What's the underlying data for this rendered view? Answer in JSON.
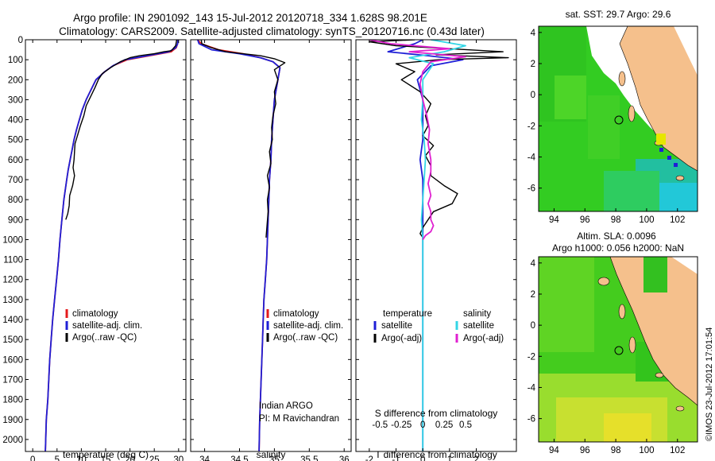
{
  "header": {
    "line1": "Argo profile: IN 2901092_143 15-Jul-2012 20120718_334 1.628S 98.201E",
    "line2": "Climatology: CARS2009. Satellite-adjusted climatology: synTS_20120716.nc (0.43d later)"
  },
  "side_stamp": "©IMOS 23-Jul-2012 17:01:54",
  "colors": {
    "climatology": "#e41a1c",
    "satellite": "#1f1fd6",
    "argo": "#000000",
    "argo_salinity": "#e020d0",
    "satellite_salinity": "#33d6e6",
    "land": "#f5c08c"
  },
  "chart_data": [
    {
      "type": "line",
      "id": "temperature",
      "xlabel": "temperature (deg C)",
      "ylabel": "",
      "xlim": [
        -1.5,
        31.5
      ],
      "ylim": [
        0,
        2060
      ],
      "y_inverted": true,
      "xticks": [
        0,
        5,
        10,
        15,
        20,
        25,
        30
      ],
      "yticks": [
        0,
        100,
        200,
        300,
        400,
        500,
        600,
        700,
        800,
        900,
        1000,
        1100,
        1200,
        1300,
        1400,
        1500,
        1600,
        1700,
        1800,
        1900,
        2000
      ],
      "legend": {
        "position": "lower-center",
        "entries": [
          "climatology",
          "satellite-adj. clim.",
          "Argo(..raw -QC)"
        ]
      },
      "series": [
        {
          "name": "climatology",
          "color": "#e41a1c",
          "x": [
            29.9,
            29.8,
            29.5,
            28.5,
            24,
            19.5,
            16.5,
            14.8,
            13,
            12,
            11,
            10.2,
            9.6,
            9,
            8.5,
            8.1,
            7.7,
            7.3,
            7,
            6.7,
            6.4,
            6,
            5.6,
            5.3,
            4.9,
            4.5,
            4.1,
            3.8,
            3.5,
            3.3,
            3.1,
            2.8,
            2.6
          ],
          "y": [
            0,
            20,
            40,
            60,
            80,
            100,
            130,
            160,
            200,
            250,
            300,
            350,
            400,
            450,
            500,
            550,
            600,
            650,
            700,
            750,
            800,
            900,
            1000,
            1100,
            1200,
            1300,
            1400,
            1500,
            1600,
            1700,
            1800,
            1900,
            2060
          ]
        },
        {
          "name": "satellite-adj. clim.",
          "color": "#1f1fd6",
          "x": [
            29.9,
            29.8,
            29.4,
            28,
            23.5,
            19,
            16.5,
            14.8,
            13,
            12,
            11,
            10.2,
            9.6,
            9,
            8.5,
            8.1,
            7.7,
            7.3,
            7,
            6.7,
            6.4,
            6,
            5.6,
            5.3,
            4.9,
            4.5,
            4.1,
            3.8,
            3.5,
            3.3,
            3.1,
            2.8,
            2.6
          ],
          "y": [
            0,
            20,
            40,
            60,
            80,
            100,
            130,
            160,
            200,
            250,
            300,
            350,
            400,
            450,
            500,
            550,
            600,
            650,
            700,
            750,
            800,
            900,
            1000,
            1100,
            1200,
            1300,
            1400,
            1500,
            1600,
            1700,
            1800,
            1900,
            2060
          ]
        },
        {
          "name": "Argo(..raw -QC)",
          "color": "#000000",
          "x": [
            29.6,
            29.4,
            28.5,
            27,
            25,
            22,
            20,
            18,
            16,
            14.3,
            13.5,
            12.8,
            12,
            11,
            10.5,
            9.8,
            9.2,
            8.7,
            8.6,
            8.5,
            8.3,
            8.6,
            8.2,
            7.6,
            7.5,
            7.2,
            6.8
          ],
          "y": [
            0,
            30,
            55,
            60,
            70,
            80,
            90,
            110,
            140,
            170,
            200,
            240,
            280,
            330,
            380,
            430,
            480,
            520,
            560,
            600,
            640,
            680,
            730,
            780,
            830,
            870,
            900
          ]
        }
      ]
    },
    {
      "type": "line",
      "id": "salinity",
      "xlabel": "salinity",
      "ylabel": "",
      "xlim": [
        33.8,
        36.1
      ],
      "ylim": [
        0,
        2060
      ],
      "y_inverted": true,
      "xticks": [
        34,
        34.5,
        35,
        35.5,
        36
      ],
      "xtick_labels": [
        "34",
        "34.5",
        "35",
        "35.5",
        "36"
      ],
      "legend": {
        "position": "lower-right",
        "entries": [
          "climatology",
          "satellite-adj. clim.",
          "Argo(..raw -QC)"
        ]
      },
      "annotations": [
        "Indian ARGO",
        "PI: M Ravichandran"
      ],
      "series": [
        {
          "name": "climatology",
          "color": "#e41a1c",
          "x": [
            33.9,
            33.95,
            34.2,
            34.55,
            34.8,
            34.98,
            35.08,
            35.05,
            35.0,
            34.98,
            34.96,
            34.95,
            34.93,
            34.92,
            34.91,
            34.9,
            34.89,
            34.87,
            34.85,
            34.84,
            34.83,
            34.82,
            34.81,
            34.8,
            34.79,
            34.78
          ],
          "y": [
            0,
            20,
            50,
            70,
            90,
            110,
            140,
            200,
            300,
            400,
            500,
            600,
            700,
            800,
            900,
            1000,
            1100,
            1200,
            1300,
            1400,
            1500,
            1600,
            1700,
            1800,
            1900,
            2060
          ]
        },
        {
          "name": "satellite-adj. clim.",
          "color": "#1f1fd6",
          "x": [
            33.9,
            33.92,
            34.1,
            34.5,
            34.8,
            34.98,
            35.08,
            35.05,
            35.0,
            34.98,
            34.96,
            34.95,
            34.93,
            34.92,
            34.91,
            34.9,
            34.89,
            34.87,
            34.85,
            34.84,
            34.83,
            34.82,
            34.81,
            34.8,
            34.79,
            34.78
          ],
          "y": [
            0,
            20,
            50,
            70,
            90,
            110,
            140,
            200,
            300,
            400,
            500,
            600,
            700,
            800,
            900,
            1000,
            1100,
            1200,
            1300,
            1400,
            1500,
            1600,
            1700,
            1800,
            1900,
            2060
          ]
        },
        {
          "name": "Argo(..raw -QC)",
          "color": "#000000",
          "x": [
            33.95,
            33.96,
            34.1,
            34.3,
            34.55,
            34.8,
            35.0,
            35.15,
            35.0,
            35.05,
            35.0,
            35.02,
            34.98,
            34.96,
            34.97,
            34.93,
            34.95,
            34.9,
            34.93,
            34.9,
            34.91,
            34.88
          ],
          "y": [
            0,
            20,
            40,
            60,
            70,
            80,
            95,
            115,
            150,
            200,
            260,
            320,
            380,
            440,
            500,
            560,
            620,
            680,
            740,
            800,
            860,
            990
          ]
        }
      ]
    },
    {
      "type": "line",
      "id": "difference",
      "xlabel": "T difference from climatology",
      "xlabel_top": "S difference from climatology",
      "ylabel": "",
      "xlim": [
        -2.5,
        3.5
      ],
      "ylim": [
        0,
        2060
      ],
      "y_inverted": true,
      "xticks": [
        -2,
        -1,
        0,
        1,
        2
      ],
      "s_ticks": [
        -0.5,
        -0.25,
        0,
        0.25,
        0.5
      ],
      "s_tick_labels": [
        "-0.5",
        "-0.25",
        "0",
        "0.25",
        "0.5"
      ],
      "legend": {
        "position": "lower-center",
        "group_titles": [
          "temperature",
          "salinity"
        ],
        "entries": [
          "satellite",
          "Argo(-adj)",
          "satellite",
          "Argo(-adj)"
        ]
      },
      "series": [
        {
          "name": "temperature satellite",
          "color": "#1f1fd6",
          "x": [
            0,
            -0.3,
            -1.3,
            0.2,
            1.5,
            0.3,
            -0.2,
            0,
            0,
            0,
            -0.1,
            0,
            0,
            0,
            0,
            0,
            0,
            0,
            0,
            0,
            0,
            0
          ],
          "y": [
            0,
            20,
            60,
            80,
            100,
            130,
            200,
            300,
            400,
            500,
            600,
            700,
            800,
            900,
            1000,
            1100,
            1200,
            1300,
            1400,
            1500,
            1800,
            2060
          ]
        },
        {
          "name": "temperature Argo(-adj)",
          "color": "#000000",
          "x": [
            -0.3,
            -2.0,
            -1.0,
            3.0,
            0.5,
            3.2,
            0.6,
            -1.0,
            -0.3,
            -0.8,
            -0.1,
            0.3,
            0.1,
            0.2,
            0,
            0.4,
            0.1,
            0.3,
            0.3,
            0.8,
            1.3,
            1.1,
            0.4,
            0.2,
            0,
            -0.1,
            0
          ],
          "y": [
            0,
            10,
            30,
            60,
            75,
            90,
            100,
            120,
            160,
            200,
            260,
            320,
            380,
            430,
            480,
            530,
            580,
            630,
            680,
            730,
            770,
            820,
            860,
            900,
            940,
            970,
            990
          ]
        },
        {
          "name": "salinity satellite",
          "color": "#33d6e6",
          "x": [
            0.3,
            1.6,
            0.8,
            -0.5,
            0.4,
            0,
            0,
            -0.05,
            0.05,
            0.1,
            0.05,
            0,
            -0.05,
            0,
            0,
            0,
            0,
            0,
            0,
            0,
            0
          ],
          "y": [
            0,
            30,
            60,
            90,
            120,
            200,
            300,
            400,
            500,
            600,
            700,
            800,
            900,
            1000,
            1100,
            1200,
            1300,
            1400,
            1500,
            1800,
            2060
          ]
        },
        {
          "name": "salinity Argo(-adj)",
          "color": "#e020d0",
          "x": [
            -2.0,
            -1.2,
            1.0,
            -0.5,
            1.6,
            0.3,
            0,
            -0.1,
            0,
            0.15,
            0.25,
            0.2,
            0.3,
            0.3,
            0.2,
            0.3,
            0.2,
            0.3,
            0.3,
            0.4,
            0.3,
            0.1,
            0
          ],
          "y": [
            0,
            20,
            45,
            60,
            85,
            110,
            160,
            220,
            300,
            380,
            450,
            520,
            600,
            660,
            720,
            780,
            820,
            860,
            900,
            930,
            960,
            980,
            1000
          ]
        }
      ]
    },
    {
      "type": "heatmap",
      "id": "sst-map",
      "title": "sat. SST: 29.7 Argo: 29.6",
      "xlim": [
        93,
        103.3
      ],
      "ylim": [
        -7.5,
        4.4
      ],
      "xticks": [
        94,
        96,
        98,
        100,
        102
      ],
      "yticks": [
        4,
        2,
        0,
        -2,
        -4,
        -6
      ],
      "argo_position": {
        "lon": 98.201,
        "lat": -1.628
      }
    },
    {
      "type": "heatmap",
      "id": "sla-map",
      "title_lines": [
        "Altim. SLA: 0.0096",
        "Argo h1000: 0.056 h2000: NaN"
      ],
      "xlim": [
        93,
        103.3
      ],
      "ylim": [
        -7.5,
        4.4
      ],
      "xticks": [
        94,
        96,
        98,
        100,
        102
      ],
      "yticks": [
        4,
        2,
        0,
        -2,
        -4,
        -6
      ],
      "argo_position": {
        "lon": 98.201,
        "lat": -1.628
      }
    }
  ]
}
